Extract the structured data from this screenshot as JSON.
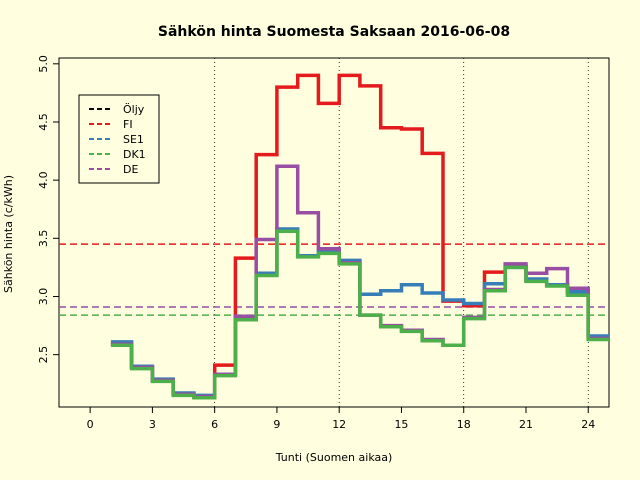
{
  "chart_data": {
    "type": "line",
    "title": "Sähkön hinta Suomesta Saksaan 2016-06-08",
    "xlabel": "Tunti (Suomen aikaa)",
    "ylabel": "Sähkön hinta (c/kWh)",
    "xlim": [
      -1.5,
      25
    ],
    "ylim": [
      2.05,
      5.05
    ],
    "xticks": [
      0,
      3,
      6,
      9,
      12,
      15,
      18,
      21,
      24
    ],
    "yticks": [
      2.5,
      3.0,
      3.5,
      4.0,
      4.5,
      5.0
    ],
    "vlines": [
      6,
      12,
      18,
      24
    ],
    "legend_position": "top-left",
    "legend": [
      {
        "label": "Öljy",
        "color": "#000000"
      },
      {
        "label": "FI",
        "color": "#E41A1C"
      },
      {
        "label": "SE1",
        "color": "#377EB8"
      },
      {
        "label": "DK1",
        "color": "#4DAF4A"
      },
      {
        "label": "DE",
        "color": "#984EA3"
      }
    ],
    "hlines": [
      {
        "label": "FI",
        "value": 3.45,
        "color": "#E41A1C"
      },
      {
        "label": "DE",
        "value": 2.91,
        "color": "#984EA3"
      },
      {
        "label": "DK1",
        "value": 2.84,
        "color": "#4DAF4A"
      }
    ],
    "x": [
      1,
      2,
      3,
      4,
      5,
      6,
      7,
      8,
      9,
      10,
      11,
      12,
      13,
      14,
      15,
      16,
      17,
      18,
      19,
      20,
      21,
      22,
      23,
      24
    ],
    "series": [
      {
        "name": "FI",
        "color": "#E41A1C",
        "values": [
          2.59,
          2.39,
          2.28,
          2.16,
          2.14,
          2.41,
          3.33,
          4.22,
          4.8,
          4.9,
          4.66,
          4.9,
          4.81,
          4.45,
          4.44,
          4.23,
          2.96,
          2.92,
          3.21,
          3.26,
          3.14,
          3.1,
          3.03,
          2.64
        ]
      },
      {
        "name": "SE1",
        "color": "#377EB8",
        "values": [
          2.61,
          2.4,
          2.29,
          2.17,
          2.15,
          2.33,
          2.81,
          3.2,
          3.58,
          3.35,
          3.39,
          3.31,
          3.02,
          3.05,
          3.1,
          3.03,
          2.97,
          2.94,
          3.11,
          3.25,
          3.15,
          3.1,
          3.04,
          2.66
        ]
      },
      {
        "name": "DE",
        "color": "#984EA3",
        "values": [
          2.59,
          2.39,
          2.28,
          2.16,
          2.14,
          2.33,
          2.83,
          3.49,
          4.12,
          3.72,
          3.41,
          3.29,
          2.84,
          2.75,
          2.71,
          2.63,
          2.58,
          2.82,
          3.06,
          3.28,
          3.2,
          3.24,
          3.07,
          2.64
        ]
      },
      {
        "name": "DK1",
        "color": "#4DAF4A",
        "values": [
          2.58,
          2.38,
          2.27,
          2.15,
          2.13,
          2.32,
          2.8,
          3.18,
          3.56,
          3.34,
          3.37,
          3.28,
          2.84,
          2.74,
          2.7,
          2.62,
          2.58,
          2.81,
          3.05,
          3.25,
          3.13,
          3.09,
          3.01,
          2.63
        ]
      }
    ]
  }
}
